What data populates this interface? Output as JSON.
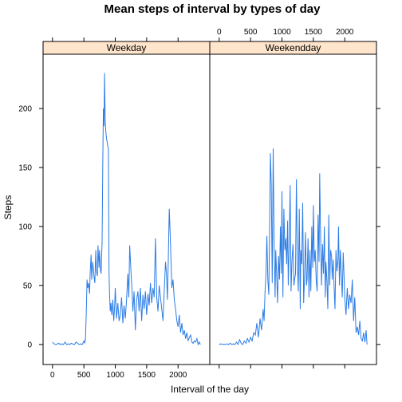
{
  "colors": {
    "line": "#2b7ce6",
    "strip_bg": "#ffe5cc",
    "frame": "#000000"
  },
  "chart_data": {
    "type": "line",
    "title": "Mean steps of interval by types of day",
    "xlabel": "Intervall of the day",
    "ylabel": "Steps",
    "xlim": [
      -150,
      2505
    ],
    "ylim": [
      -17,
      246
    ],
    "x_ticks": [
      0,
      500,
      1000,
      1500,
      2000
    ],
    "y_ticks": [
      0,
      50,
      100,
      150,
      200
    ],
    "layout": "two panels side by side; y tick labels on the left, x tick labels bottom for the left panel and top for the right panel",
    "panels": [
      {
        "name": "Weekday",
        "x": [
          0,
          25,
          50,
          75,
          100,
          125,
          150,
          175,
          200,
          225,
          250,
          275,
          300,
          325,
          350,
          375,
          400,
          425,
          450,
          475,
          500,
          510,
          525,
          540,
          550,
          560,
          575,
          590,
          600,
          615,
          625,
          640,
          650,
          660,
          675,
          690,
          700,
          715,
          725,
          740,
          750,
          765,
          775,
          790,
          800,
          810,
          820,
          830,
          840,
          850,
          860,
          870,
          880,
          890,
          900,
          910,
          920,
          930,
          945,
          960,
          975,
          990,
          1000,
          1020,
          1040,
          1060,
          1080,
          1100,
          1120,
          1140,
          1160,
          1180,
          1200,
          1215,
          1230,
          1250,
          1265,
          1280,
          1300,
          1320,
          1340,
          1360,
          1380,
          1400,
          1420,
          1440,
          1460,
          1480,
          1500,
          1520,
          1540,
          1560,
          1580,
          1600,
          1620,
          1640,
          1660,
          1680,
          1700,
          1720,
          1740,
          1760,
          1780,
          1800,
          1815,
          1830,
          1845,
          1860,
          1880,
          1900,
          1920,
          1940,
          1960,
          1980,
          2000,
          2020,
          2040,
          2060,
          2080,
          2100,
          2120,
          2140,
          2160,
          2180,
          2200,
          2220,
          2240,
          2260,
          2280,
          2300,
          2320,
          2340,
          2355
        ],
        "y": [
          2,
          0.5,
          0,
          0.3,
          1,
          0,
          0.5,
          0,
          2,
          0,
          0.5,
          0,
          1,
          0.3,
          0,
          2,
          1,
          0,
          0.5,
          0,
          3,
          1,
          4,
          30,
          55,
          48,
          52,
          43,
          60,
          76,
          55,
          70,
          65,
          58,
          52,
          80,
          62,
          58,
          84,
          65,
          80,
          63,
          60,
          87,
          150,
          200,
          185,
          230,
          190,
          180,
          175,
          172,
          168,
          166,
          60,
          42,
          28,
          35,
          25,
          38,
          20,
          32,
          48,
          22,
          35,
          20,
          25,
          40,
          18,
          33,
          22,
          38,
          60,
          40,
          84,
          62,
          48,
          28,
          45,
          12,
          38,
          45,
          28,
          48,
          20,
          42,
          30,
          45,
          25,
          43,
          33,
          52,
          35,
          48,
          40,
          90,
          40,
          28,
          50,
          40,
          30,
          20,
          45,
          70,
          60,
          38,
          72,
          115,
          85,
          48,
          55,
          38,
          30,
          20,
          15,
          25,
          10,
          18,
          8,
          12,
          5,
          10,
          3,
          6,
          8,
          2,
          1,
          3,
          2,
          5,
          0,
          2,
          0
        ]
      },
      {
        "name": "Weekendday",
        "x": [
          0,
          25,
          50,
          75,
          100,
          125,
          150,
          175,
          200,
          225,
          250,
          275,
          300,
          325,
          350,
          375,
          400,
          425,
          450,
          475,
          500,
          525,
          550,
          575,
          600,
          625,
          650,
          675,
          700,
          715,
          730,
          745,
          760,
          775,
          790,
          800,
          815,
          830,
          845,
          860,
          875,
          890,
          900,
          915,
          930,
          945,
          960,
          975,
          990,
          1000,
          1015,
          1030,
          1045,
          1060,
          1075,
          1090,
          1100,
          1115,
          1130,
          1145,
          1160,
          1175,
          1190,
          1200,
          1215,
          1230,
          1245,
          1260,
          1275,
          1290,
          1300,
          1315,
          1330,
          1345,
          1360,
          1375,
          1390,
          1400,
          1415,
          1430,
          1445,
          1460,
          1475,
          1490,
          1500,
          1515,
          1530,
          1545,
          1560,
          1575,
          1590,
          1600,
          1615,
          1630,
          1645,
          1660,
          1675,
          1690,
          1700,
          1715,
          1730,
          1745,
          1760,
          1775,
          1790,
          1800,
          1815,
          1830,
          1845,
          1860,
          1875,
          1890,
          1900,
          1915,
          1930,
          1945,
          1960,
          1975,
          1990,
          2000,
          2020,
          2040,
          2060,
          2080,
          2100,
          2120,
          2140,
          2160,
          2180,
          2200,
          2220,
          2240,
          2260,
          2280,
          2300,
          2320,
          2340,
          2355
        ],
        "y": [
          0,
          0.5,
          0,
          0.3,
          0,
          0.5,
          0,
          1,
          0,
          0.5,
          0,
          2,
          0,
          4,
          1,
          0,
          3,
          1,
          5,
          2,
          6,
          3,
          10,
          8,
          18,
          6,
          22,
          12,
          30,
          20,
          45,
          60,
          92,
          55,
          42,
          85,
          162,
          135,
          52,
          166,
          85,
          40,
          80,
          60,
          35,
          75,
          55,
          100,
          60,
          130,
          40,
          115,
          80,
          90,
          68,
          105,
          50,
          85,
          135,
          45,
          72,
          85,
          50,
          55,
          60,
          140,
          70,
          45,
          115,
          30,
          80,
          68,
          120,
          35,
          60,
          95,
          50,
          55,
          90,
          40,
          80,
          45,
          100,
          65,
          118,
          70,
          80,
          55,
          45,
          110,
          70,
          145,
          95,
          50,
          85,
          60,
          100,
          40,
          70,
          55,
          30,
          110,
          50,
          80,
          75,
          55,
          72,
          48,
          30,
          80,
          62,
          70,
          100,
          50,
          80,
          60,
          40,
          78,
          55,
          40,
          25,
          48,
          30,
          42,
          35,
          55,
          20,
          40,
          10,
          15,
          8,
          20,
          5,
          3,
          10,
          2,
          12,
          0
        ]
      }
    ]
  }
}
